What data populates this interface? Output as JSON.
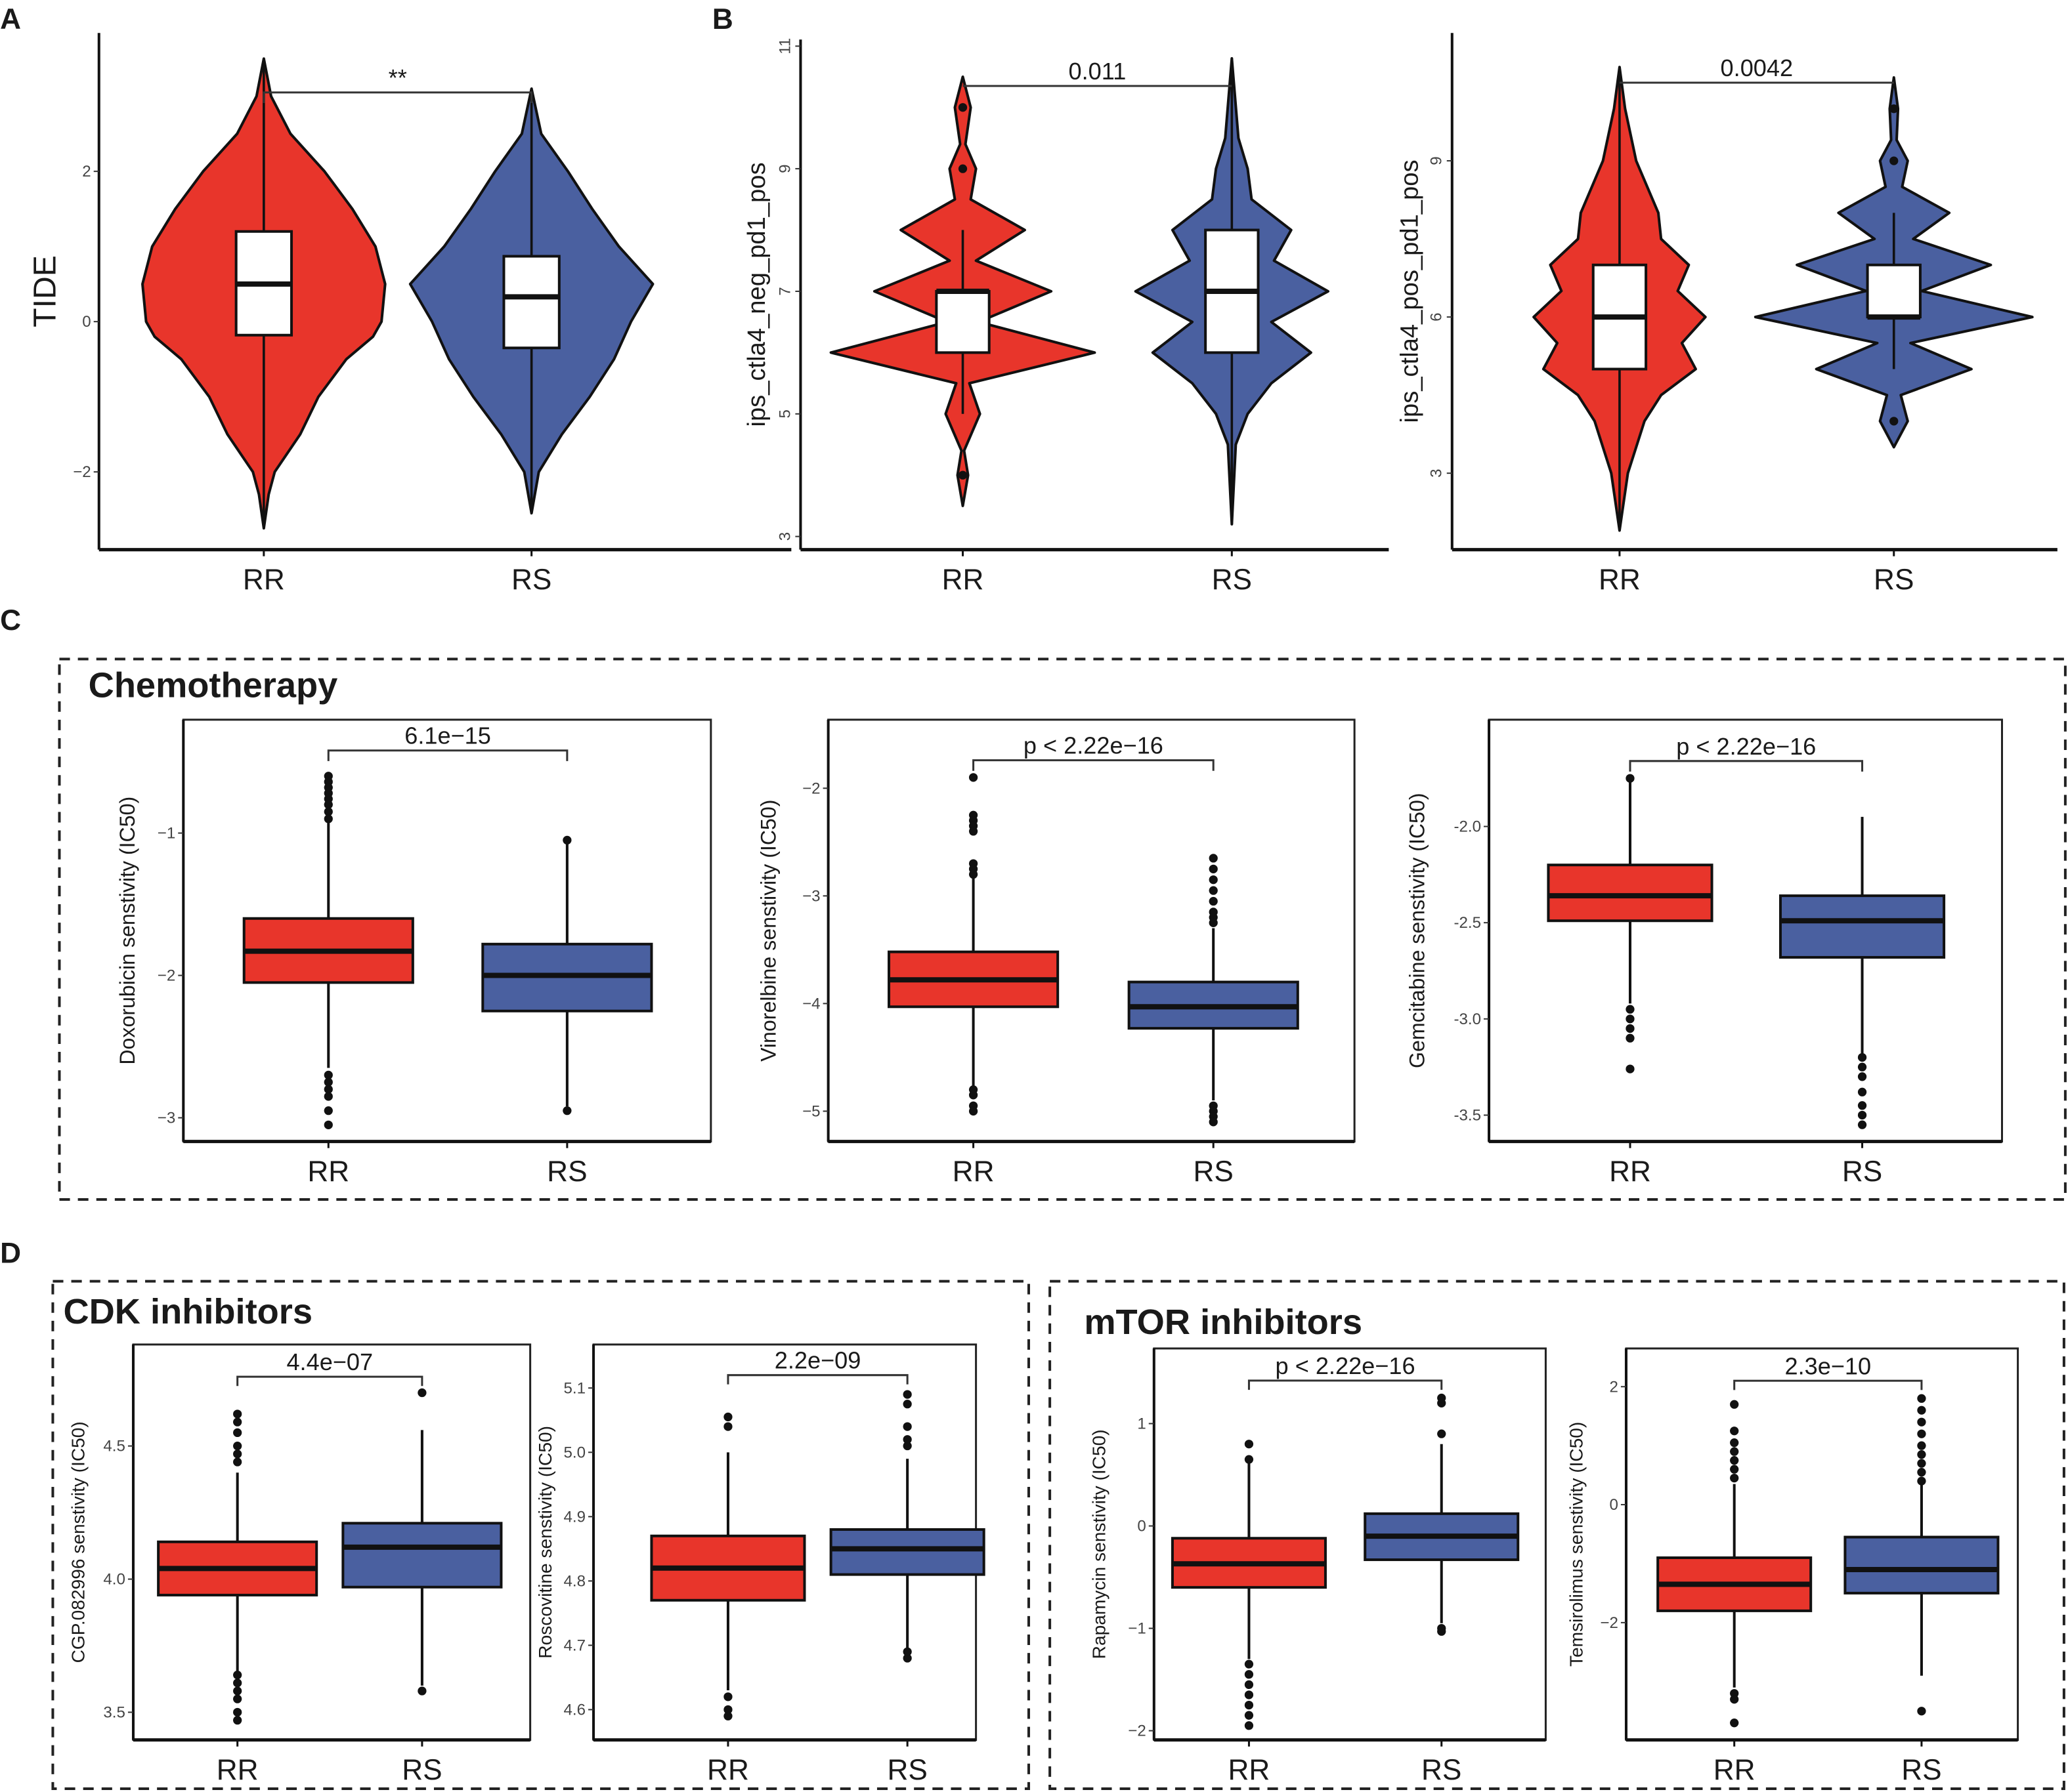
{
  "colors": {
    "RR": "#E8352B",
    "RS": "#4A60A0"
  },
  "panel_letters": [
    "A",
    "B",
    "C",
    "D"
  ],
  "group_titles": {
    "chemo": "Chemotherapy",
    "cdk": "CDK inhibitors",
    "mtor": "mTOR inhibitors"
  },
  "chart_data": [
    {
      "id": "A",
      "type": "violin",
      "ylabel": "TIDE",
      "categories": [
        "RR",
        "RS"
      ],
      "yticks": [
        -2,
        0,
        2
      ],
      "pvalue": "**",
      "bracket_y": 3.05,
      "groups": [
        {
          "name": "RR",
          "q1": -0.18,
          "median": 0.5,
          "q3": 1.2,
          "whisker_low": -2.75,
          "whisker_high": 3.5,
          "outliers": [],
          "violin": [
            [
              -2.75,
              0
            ],
            [
              -2.3,
              0.04
            ],
            [
              -2,
              0.09
            ],
            [
              -1.5,
              0.3
            ],
            [
              -1,
              0.45
            ],
            [
              -0.5,
              0.68
            ],
            [
              -0.2,
              0.9
            ],
            [
              0,
              0.97
            ],
            [
              0.5,
              1
            ],
            [
              1,
              0.92
            ],
            [
              1.5,
              0.73
            ],
            [
              2,
              0.5
            ],
            [
              2.5,
              0.22
            ],
            [
              3,
              0.06
            ],
            [
              3.5,
              0
            ]
          ]
        },
        {
          "name": "RS",
          "q1": -0.35,
          "median": 0.33,
          "q3": 0.87,
          "whisker_low": -2.55,
          "whisker_high": 3.1,
          "outliers": [],
          "violin": [
            [
              -2.55,
              0
            ],
            [
              -2,
              0.06
            ],
            [
              -1.5,
              0.25
            ],
            [
              -1,
              0.48
            ],
            [
              -0.5,
              0.68
            ],
            [
              0,
              0.82
            ],
            [
              0.5,
              1
            ],
            [
              1,
              0.72
            ],
            [
              1.5,
              0.5
            ],
            [
              2,
              0.3
            ],
            [
              2.5,
              0.08
            ],
            [
              3.1,
              0
            ]
          ]
        }
      ]
    },
    {
      "id": "B1",
      "type": "violin",
      "ylabel": "ips_ctla4_neg_pd1_pos",
      "categories": [
        "RR",
        "RS"
      ],
      "yticks": [
        3,
        5,
        7,
        9,
        11
      ],
      "pvalue": "0.011",
      "bracket_y": 10.35,
      "groups": [
        {
          "name": "RR",
          "q1": 6,
          "median": 7,
          "q3": 7,
          "whisker_low": 5,
          "whisker_high": 8,
          "outliers": [
            4,
            9,
            10
          ],
          "violin": [
            [
              3.5,
              0
            ],
            [
              4,
              0.04
            ],
            [
              4.4,
              0.01
            ],
            [
              5,
              0.13
            ],
            [
              5.5,
              0.05
            ],
            [
              6,
              1
            ],
            [
              6.5,
              0.12
            ],
            [
              7,
              0.67
            ],
            [
              7.5,
              0.1
            ],
            [
              8,
              0.47
            ],
            [
              8.5,
              0.06
            ],
            [
              9,
              0.1
            ],
            [
              9.4,
              0.02
            ],
            [
              10,
              0.06
            ],
            [
              10.5,
              0
            ]
          ]
        },
        {
          "name": "RS",
          "q1": 6,
          "median": 7,
          "q3": 8,
          "whisker_low": 3.2,
          "whisker_high": 10.8,
          "outliers": [],
          "violin": [
            [
              3.2,
              0
            ],
            [
              4.5,
              0.03
            ],
            [
              5,
              0.12
            ],
            [
              5.5,
              0.3
            ],
            [
              6,
              0.6
            ],
            [
              6.5,
              0.3
            ],
            [
              7,
              0.73
            ],
            [
              7.5,
              0.32
            ],
            [
              8,
              0.45
            ],
            [
              8.5,
              0.15
            ],
            [
              9,
              0.12
            ],
            [
              9.5,
              0.05
            ],
            [
              10.8,
              0
            ]
          ]
        }
      ]
    },
    {
      "id": "B2",
      "type": "violin",
      "ylabel": "ips_ctla4_pos_pd1_pos",
      "categories": [
        "RR",
        "RS"
      ],
      "yticks": [
        3,
        6,
        9
      ],
      "pvalue": "0.0042",
      "bracket_y": 10.5,
      "groups": [
        {
          "name": "RR",
          "q1": 5,
          "median": 6,
          "q3": 7,
          "whisker_low": 1.9,
          "whisker_high": 10.8,
          "outliers": [],
          "violin": [
            [
              1.9,
              0
            ],
            [
              3,
              0.06
            ],
            [
              4,
              0.18
            ],
            [
              4.5,
              0.3
            ],
            [
              5,
              0.55
            ],
            [
              5.5,
              0.45
            ],
            [
              6,
              0.62
            ],
            [
              6.5,
              0.42
            ],
            [
              7,
              0.5
            ],
            [
              7.5,
              0.3
            ],
            [
              8,
              0.28
            ],
            [
              9,
              0.12
            ],
            [
              10,
              0.04
            ],
            [
              10.8,
              0
            ]
          ]
        },
        {
          "name": "RS",
          "q1": 6,
          "median": 6,
          "q3": 7,
          "whisker_low": 5,
          "whisker_high": 8,
          "outliers": [
            4,
            9,
            10
          ],
          "violin": [
            [
              3.5,
              0
            ],
            [
              4,
              0.1
            ],
            [
              4.5,
              0.05
            ],
            [
              5,
              0.56
            ],
            [
              5.5,
              0.12
            ],
            [
              6,
              1
            ],
            [
              6.5,
              0.2
            ],
            [
              7,
              0.7
            ],
            [
              7.5,
              0.14
            ],
            [
              8,
              0.4
            ],
            [
              8.5,
              0.06
            ],
            [
              9,
              0.1
            ],
            [
              9.4,
              0.02
            ],
            [
              10,
              0.03
            ],
            [
              10.6,
              0
            ]
          ]
        }
      ]
    },
    {
      "id": "C1",
      "type": "box",
      "ylabel": "Doxorubicin senstivity (IC50)",
      "categories": [
        "RR",
        "RS"
      ],
      "yticks": [
        -3,
        -2,
        -1
      ],
      "pvalue": "6.1e−15",
      "bracket_y": -0.42,
      "groups": [
        {
          "name": "RR",
          "q1": -2.05,
          "median": -1.83,
          "q3": -1.6,
          "whisker_low": -2.65,
          "whisker_high": -0.93,
          "outliers": [
            -0.6,
            -0.64,
            -0.68,
            -0.72,
            -0.76,
            -0.8,
            -0.85,
            -0.9,
            -2.7,
            -2.75,
            -2.8,
            -2.85,
            -2.95,
            -3.05
          ]
        },
        {
          "name": "RS",
          "q1": -2.25,
          "median": -2.0,
          "q3": -1.78,
          "whisker_low": -2.92,
          "whisker_high": -1.05,
          "outliers": [
            -1.05,
            -2.95
          ]
        }
      ]
    },
    {
      "id": "C2",
      "type": "box",
      "ylabel": "Vinorelbine senstivity (IC50)",
      "categories": [
        "RR",
        "RS"
      ],
      "yticks": [
        -5,
        -4,
        -3,
        -2
      ],
      "pvalue": "p < 2.22e−16",
      "bracket_y": -1.74,
      "groups": [
        {
          "name": "RR",
          "q1": -4.03,
          "median": -3.78,
          "q3": -3.52,
          "whisker_low": -4.8,
          "whisker_high": -2.8,
          "outliers": [
            -1.9,
            -2.25,
            -2.3,
            -2.35,
            -2.4,
            -2.7,
            -2.75,
            -2.8,
            -4.8,
            -4.85,
            -4.95,
            -5.0
          ]
        },
        {
          "name": "RS",
          "q1": -4.23,
          "median": -4.03,
          "q3": -3.8,
          "whisker_low": -4.9,
          "whisker_high": -3.3,
          "outliers": [
            -2.65,
            -2.75,
            -2.85,
            -2.95,
            -3.05,
            -3.15,
            -3.2,
            -3.25,
            -4.95,
            -5.0,
            -5.05,
            -5.1
          ]
        }
      ]
    },
    {
      "id": "C3",
      "type": "box",
      "ylabel": "Gemcitabine senstivity (IC50)",
      "categories": [
        "RR",
        "RS"
      ],
      "yticks": [
        -3.5,
        -3.0,
        -2.5,
        -2.0
      ],
      "ytick_labels": [
        "-3.5",
        "-3.0",
        "-2.5",
        "-2.0"
      ],
      "pvalue": "p < 2.22e−16",
      "bracket_y": -1.66,
      "groups": [
        {
          "name": "RR",
          "q1": -2.49,
          "median": -2.36,
          "q3": -2.2,
          "whisker_low": -2.92,
          "whisker_high": -1.75,
          "outliers": [
            -1.75,
            -2.95,
            -3.0,
            -3.05,
            -3.1,
            -3.26
          ]
        },
        {
          "name": "RS",
          "q1": -2.68,
          "median": -2.49,
          "q3": -2.36,
          "whisker_low": -3.18,
          "whisker_high": -1.95,
          "outliers": [
            -3.2,
            -3.25,
            -3.3,
            -3.38,
            -3.45,
            -3.5,
            -3.55
          ]
        }
      ]
    },
    {
      "id": "D1",
      "type": "box",
      "ylabel": "CGP.082996 senstivity (IC50)",
      "categories": [
        "RR",
        "RS"
      ],
      "yticks": [
        3.5,
        4.0,
        4.5
      ],
      "ytick_labels": [
        "3.5",
        "4.0",
        "4.5"
      ],
      "pvalue": "4.4e−07",
      "bracket_y": 4.76,
      "groups": [
        {
          "name": "RR",
          "q1": 3.94,
          "median": 4.04,
          "q3": 4.14,
          "whisker_low": 3.65,
          "whisker_high": 4.4,
          "outliers": [
            4.44,
            4.47,
            4.5,
            4.55,
            4.59,
            4.62,
            3.47,
            3.5,
            3.55,
            3.58,
            3.61,
            3.64
          ]
        },
        {
          "name": "RS",
          "q1": 3.97,
          "median": 4.12,
          "q3": 4.21,
          "whisker_low": 3.6,
          "whisker_high": 4.56,
          "outliers": [
            4.7,
            3.58
          ]
        }
      ]
    },
    {
      "id": "D2",
      "type": "box",
      "ylabel": "Roscovitine senstivity (IC50)",
      "categories": [
        "RR",
        "RS"
      ],
      "yticks": [
        4.6,
        4.7,
        4.8,
        4.9,
        5.0,
        5.1
      ],
      "ytick_labels": [
        "4.6",
        "4.7",
        "4.8",
        "4.9",
        "5.0",
        "5.1"
      ],
      "pvalue": "2.2e−09",
      "bracket_y": 5.12,
      "groups": [
        {
          "name": "RR",
          "q1": 4.77,
          "median": 4.82,
          "q3": 4.87,
          "whisker_low": 4.63,
          "whisker_high": 5.0,
          "outliers": [
            5.04,
            5.055,
            4.62,
            4.6,
            4.59
          ]
        },
        {
          "name": "RS",
          "q1": 4.81,
          "median": 4.85,
          "q3": 4.88,
          "whisker_low": 4.69,
          "whisker_high": 4.99,
          "outliers": [
            5.01,
            5.02,
            5.04,
            5.075,
            5.09,
            4.68,
            4.69
          ]
        }
      ]
    },
    {
      "id": "D3",
      "type": "box",
      "ylabel": "Rapamycin senstivity (IC50)",
      "categories": [
        "RR",
        "RS"
      ],
      "yticks": [
        -2,
        -1,
        0,
        1
      ],
      "pvalue": "p < 2.22e−16",
      "bracket_y": 1.42,
      "groups": [
        {
          "name": "RR",
          "q1": -0.6,
          "median": -0.37,
          "q3": -0.12,
          "whisker_low": -1.3,
          "whisker_high": 0.65,
          "outliers": [
            0.8,
            0.65,
            -1.35,
            -1.45,
            -1.55,
            -1.65,
            -1.75,
            -1.85,
            -1.95
          ]
        },
        {
          "name": "RS",
          "q1": -0.33,
          "median": -0.1,
          "q3": 0.12,
          "whisker_low": -0.95,
          "whisker_high": 0.8,
          "outliers": [
            0.9,
            1.2,
            1.25,
            -1.0,
            -1.03
          ]
        }
      ]
    },
    {
      "id": "D4",
      "type": "box",
      "ylabel": "Temsirolimus senstivity (IC50)",
      "categories": [
        "RR",
        "RS"
      ],
      "yticks": [
        -2,
        0,
        2
      ],
      "pvalue": "2.3e−10",
      "bracket_y": 2.1,
      "groups": [
        {
          "name": "RR",
          "q1": -1.8,
          "median": -1.35,
          "q3": -0.9,
          "whisker_low": -3.1,
          "whisker_high": 0.35,
          "outliers": [
            0.45,
            0.6,
            0.75,
            0.9,
            1.05,
            1.25,
            1.7,
            -3.2,
            -3.3,
            -3.7
          ]
        },
        {
          "name": "RS",
          "q1": -1.5,
          "median": -1.1,
          "q3": -0.55,
          "whisker_low": -2.9,
          "whisker_high": 0.35,
          "outliers": [
            0.4,
            0.55,
            0.7,
            0.85,
            1.0,
            1.2,
            1.4,
            1.6,
            1.8,
            -3.5
          ]
        }
      ]
    }
  ]
}
